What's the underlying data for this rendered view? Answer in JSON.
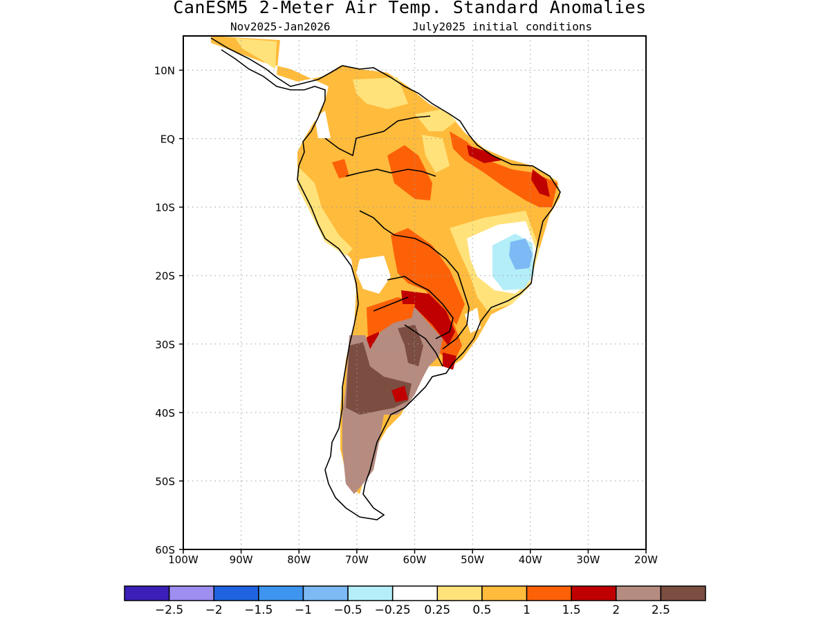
{
  "title": "CanESM5 2-Meter Air Temp. Standard Anomalies",
  "subtitle_left": "Nov2025-Jan2026",
  "subtitle_right": "July2025 initial conditions",
  "map": {
    "lon_range": [
      -100,
      -20
    ],
    "lat_range": [
      -60,
      15
    ],
    "lat_ticks": [
      "10N",
      "EQ",
      "10S",
      "20S",
      "30S",
      "40S",
      "50S",
      "60S"
    ],
    "lon_ticks": [
      "100W",
      "90W",
      "80W",
      "70W",
      "60W",
      "50W",
      "40W",
      "30W",
      "20W"
    ],
    "grid": "dotted"
  },
  "colorbar": {
    "colors": [
      "#3b1fb8",
      "#9d8ef0",
      "#1f63e0",
      "#3e95ef",
      "#7cb9f5",
      "#b4eef8",
      "#ffffff",
      "#ffe27a",
      "#ffbb3c",
      "#fc6108",
      "#c00000",
      "#b68b80",
      "#7b4e41"
    ],
    "labels": [
      "-2.5",
      "-2",
      "-1.5",
      "-1",
      "-0.5",
      "-0.25",
      "0.25",
      "0.5",
      "1",
      "1.5",
      "2",
      "2.5"
    ]
  }
}
